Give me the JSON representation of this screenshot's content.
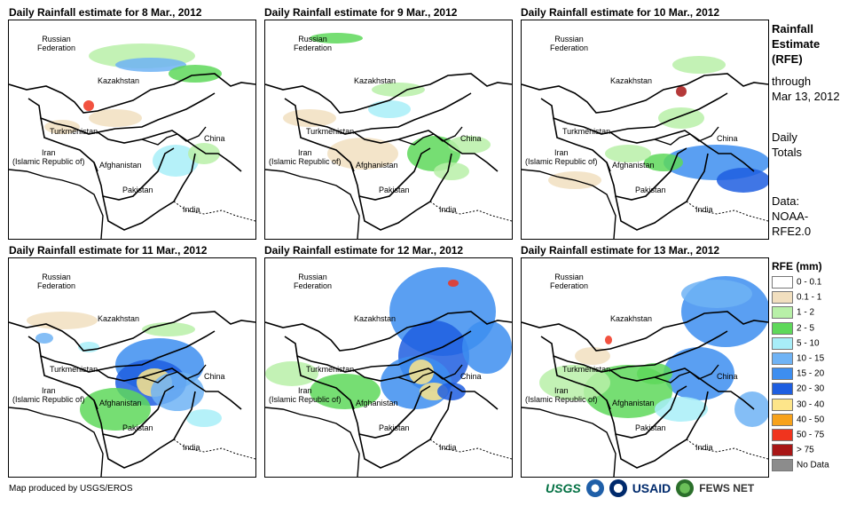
{
  "panels": [
    {
      "title": "Daily Rainfall estimate for 8 Mar., 2012"
    },
    {
      "title": "Daily Rainfall estimate for 9 Mar., 2012"
    },
    {
      "title": "Daily Rainfall estimate for 10 Mar., 2012"
    },
    {
      "title": "Daily Rainfall estimate for 11 Mar., 2012"
    },
    {
      "title": "Daily Rainfall estimate for 12 Mar., 2012"
    },
    {
      "title": "Daily Rainfall estimate for 13 Mar., 2012"
    }
  ],
  "map_labels": {
    "russia": "Russian\nFederation",
    "kazakhstan": "Kazakhstan",
    "turkmenistan": "Turkmenistan",
    "iran": "Iran\n(Islamic Republic of)",
    "afghanistan": "Afghanistan",
    "pakistan": "Pakistan",
    "china": "China",
    "india": "India"
  },
  "side": {
    "title_line1": "Rainfall",
    "title_line2": "Estimate",
    "title_line3": "(RFE)",
    "through": "through",
    "date": "Mar 13, 2012",
    "totals_line1": "Daily",
    "totals_line2": "Totals",
    "data_line1": "Data:",
    "data_line2": "NOAA-",
    "data_line3": "RFE2.0"
  },
  "legend": {
    "title": "RFE (mm)",
    "items": [
      {
        "label": "0 - 0.1",
        "color": "#ffffff"
      },
      {
        "label": "0.1 - 1",
        "color": "#f1dfbf"
      },
      {
        "label": "1 - 2",
        "color": "#b8f0a8"
      },
      {
        "label": "2 - 5",
        "color": "#5ed85a"
      },
      {
        "label": "5 - 10",
        "color": "#a8eef8"
      },
      {
        "label": "10 - 15",
        "color": "#6fb3f5"
      },
      {
        "label": "15 - 20",
        "color": "#3d8ef0"
      },
      {
        "label": "20 - 30",
        "color": "#1e5ee0"
      },
      {
        "label": "30 - 40",
        "color": "#fde58a"
      },
      {
        "label": "40 - 50",
        "color": "#f7a21b"
      },
      {
        "label": "50 - 75",
        "color": "#f0341e"
      },
      {
        "label": "> 75",
        "color": "#a81616"
      },
      {
        "label": "No Data",
        "color": "#8c8c8c"
      }
    ]
  },
  "credit": "Map produced by USGS/EROS",
  "logos": {
    "usgs": "USGS",
    "usaid": "USAID",
    "fews": "FEWS NET"
  }
}
